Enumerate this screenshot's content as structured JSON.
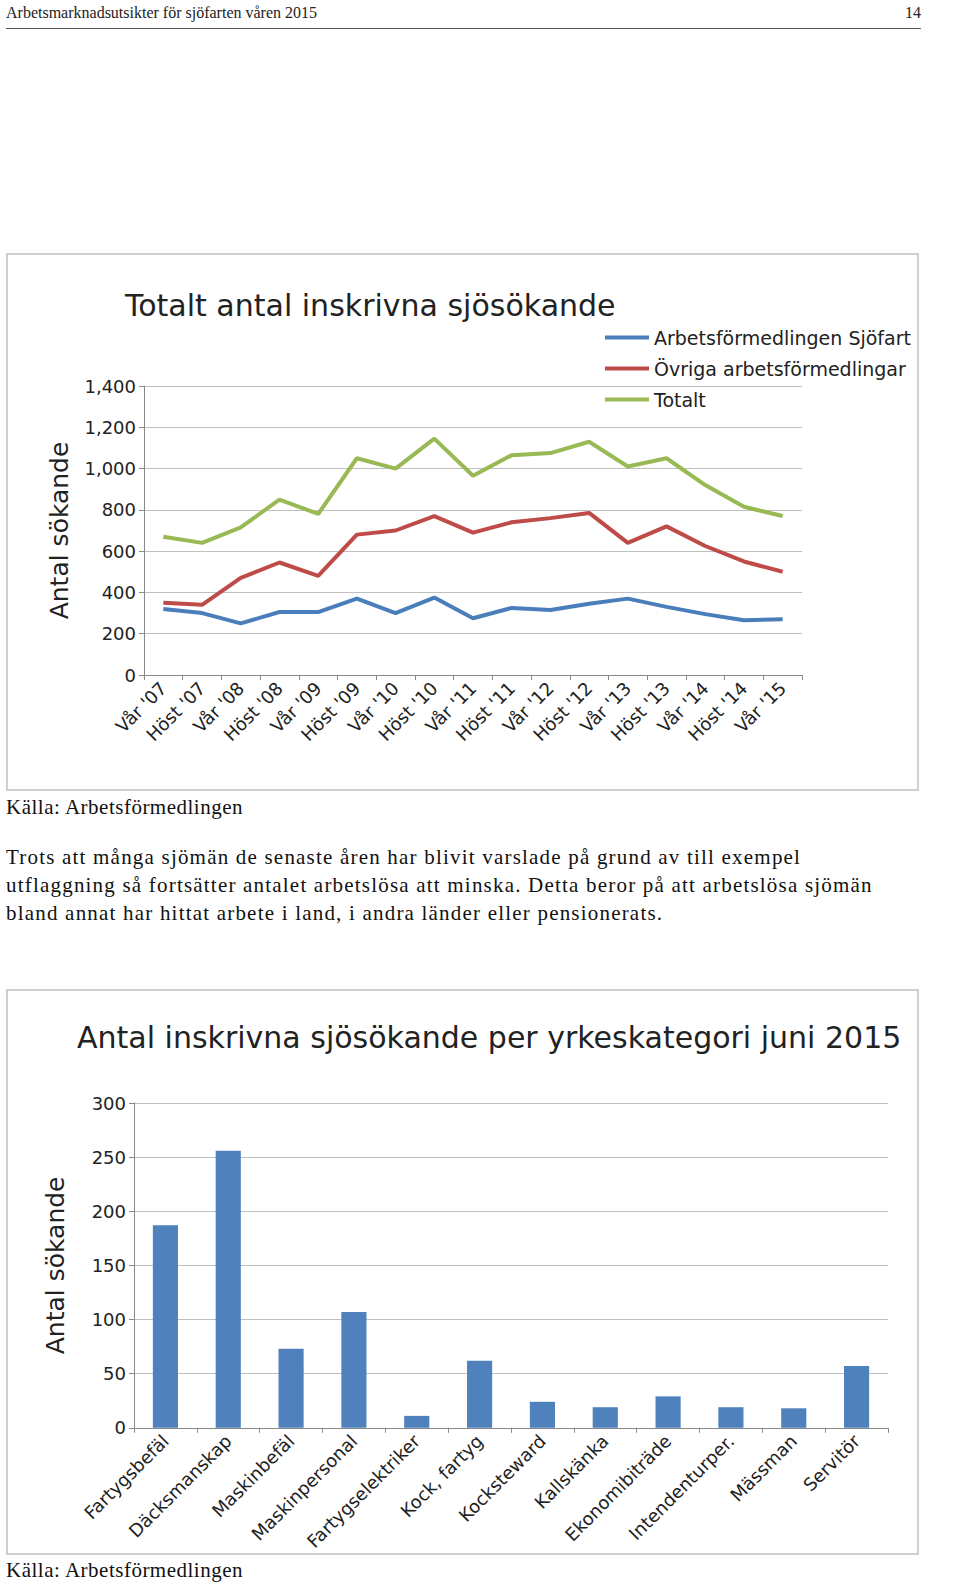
{
  "page": {
    "header": "Arbetsmarknadsutsikter för sjöfarten våren 2015",
    "page_number": 14,
    "text": "Trots att många sjömän de senaste åren har blivit varslade på grund av till exempel utflaggning så fortsätter antalet arbetslösa att minska. Detta beror på att arbetslösa sjömän bland annat har hittat arbete i land, i andra länder eller pensionerats."
  },
  "chart_data": [
    {
      "type": "line",
      "title": "Totalt antal inskrivna sjösökande",
      "y_label": "Antal sökande",
      "categories": [
        "Vår '07",
        "Höst '07",
        "Vår '08",
        "Höst '08",
        "Vår '09",
        "Höst '09",
        "Vår '10",
        "Höst '10",
        "Vår '11",
        "Höst '11",
        "Vår '12",
        "Höst '12",
        "Vår '13",
        "Höst '13",
        "Vår '14",
        "Höst '14",
        "Vår '15"
      ],
      "series": [
        {
          "name": "Arbetsförmedlingen Sjöfart",
          "color": "#4a7ebb",
          "values": [
            320,
            300,
            250,
            305,
            305,
            370,
            300,
            375,
            275,
            325,
            315,
            345,
            370,
            330,
            295,
            265,
            270
          ]
        },
        {
          "name": "Övriga arbetsförmedlingar",
          "color": "#be4b48",
          "values": [
            350,
            340,
            470,
            545,
            480,
            680,
            700,
            770,
            690,
            740,
            760,
            785,
            640,
            720,
            625,
            550,
            500
          ]
        },
        {
          "name": "Totalt",
          "color": "#98b954",
          "values": [
            670,
            640,
            715,
            850,
            780,
            1050,
            1000,
            1145,
            965,
            1065,
            1075,
            1130,
            1010,
            1050,
            920,
            815,
            770
          ]
        }
      ],
      "ylim": [
        0,
        1400
      ],
      "yticks": [
        0,
        200,
        400,
        600,
        800,
        1000,
        1200,
        1400
      ],
      "grid": true,
      "legend": "upper right",
      "source": "Källa: Arbetsförmedlingen"
    },
    {
      "type": "bar",
      "title": "Antal inskrivna sjösökande per yrkeskategori juni 2015",
      "y_label": "Antal sökande",
      "categories": [
        "Fartygsbefäl",
        "Däcksmanskap",
        "Maskinbefäl",
        "Maskinpersonal",
        "Fartygselektriker",
        "Kock, fartyg",
        "Kocksteward",
        "Kallskänka",
        "Ekonomibiträde",
        "Intendenturper.",
        "Mässman",
        "Servitör"
      ],
      "values": [
        187,
        256,
        73,
        107,
        11,
        62,
        24,
        19,
        29,
        19,
        18,
        57
      ],
      "color": "#4f81bd",
      "ylim": [
        0,
        300
      ],
      "yticks": [
        0,
        50,
        100,
        150,
        200,
        250,
        300
      ],
      "grid": true,
      "source": "Källa: Arbetsförmedlingen"
    }
  ]
}
